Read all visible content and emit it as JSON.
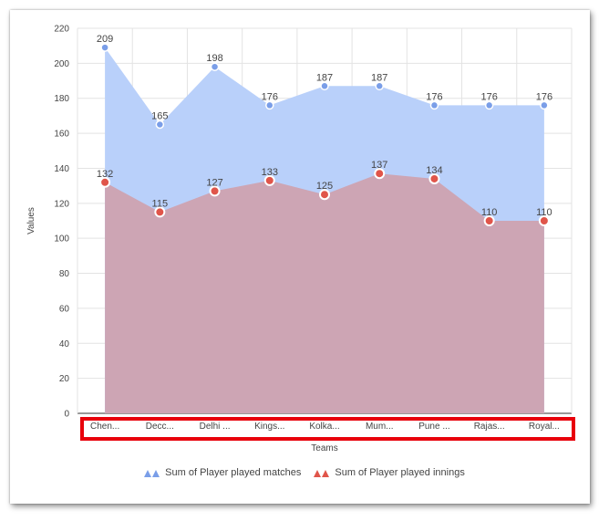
{
  "chart_data": {
    "type": "area",
    "categories": [
      "Chen...",
      "Decc...",
      "Delhi ...",
      "Kings...",
      "Kolka...",
      "Mum...",
      "Pune ...",
      "Rajas...",
      "Royal..."
    ],
    "series": [
      {
        "name": "Sum of Player played matches",
        "values": [
          209,
          165,
          198,
          176,
          187,
          187,
          176,
          176,
          176
        ],
        "color": "#7a9ee8",
        "fill": "#b9d0fa"
      },
      {
        "name": "Sum of Player played innings",
        "values": [
          132,
          115,
          127,
          133,
          125,
          137,
          134,
          110,
          110
        ],
        "color": "#e0554a",
        "fill": "#cda2b0"
      }
    ],
    "xlabel": "Teams",
    "ylabel": "Values",
    "ylim": [
      0,
      220
    ],
    "yticks": [
      0,
      20,
      40,
      60,
      80,
      100,
      120,
      140,
      160,
      180,
      200,
      220
    ],
    "grid": true,
    "legend_position": "bottom",
    "highlight_color": "#e8000b"
  }
}
